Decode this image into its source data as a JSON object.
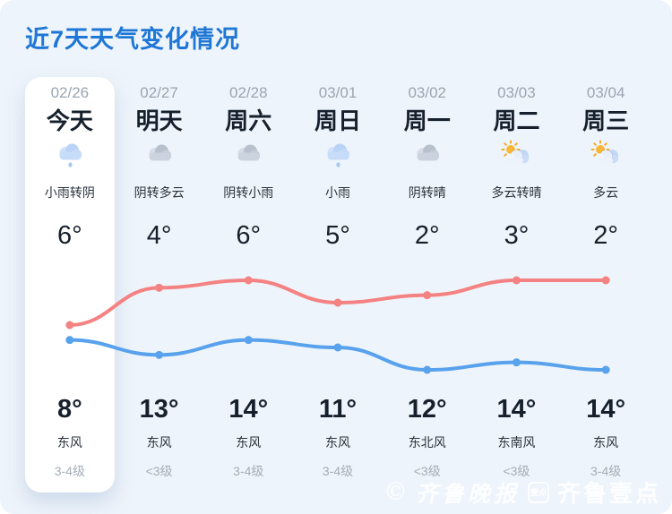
{
  "title": "近7天天气变化情况",
  "colors": {
    "accent_blue": "#1e76d5",
    "background": "#eef4fb",
    "card": "#ffffff",
    "high_line": "#f58282",
    "low_line": "#58a2ed",
    "date_gray": "#9aa5b1",
    "text_dark": "#16202c",
    "level_gray": "#a4adb8"
  },
  "columns": [
    {
      "date": "02/26",
      "day": "今天",
      "icon": "light-rain",
      "desc": "小雨转阴",
      "temp_low": "6°",
      "temp_high": "8°",
      "wind_dir": "东风",
      "wind_level": "3-4级",
      "today": true
    },
    {
      "date": "02/27",
      "day": "明天",
      "icon": "overcast",
      "desc": "阴转多云",
      "temp_low": "4°",
      "temp_high": "13°",
      "wind_dir": "东风",
      "wind_level": "<3级",
      "today": false
    },
    {
      "date": "02/28",
      "day": "周六",
      "icon": "overcast",
      "desc": "阴转小雨",
      "temp_low": "6°",
      "temp_high": "14°",
      "wind_dir": "东风",
      "wind_level": "3-4级",
      "today": false
    },
    {
      "date": "03/01",
      "day": "周日",
      "icon": "light-rain",
      "desc": "小雨",
      "temp_low": "5°",
      "temp_high": "11°",
      "wind_dir": "东风",
      "wind_level": "3-4级",
      "today": false
    },
    {
      "date": "03/02",
      "day": "周一",
      "icon": "overcast",
      "desc": "阴转晴",
      "temp_low": "2°",
      "temp_high": "12°",
      "wind_dir": "东北风",
      "wind_level": "<3级",
      "today": false
    },
    {
      "date": "03/03",
      "day": "周二",
      "icon": "sun-cloud",
      "desc": "多云转晴",
      "temp_low": "3°",
      "temp_high": "14°",
      "wind_dir": "东南风",
      "wind_level": "<3级",
      "today": false
    },
    {
      "date": "03/04",
      "day": "周三",
      "icon": "sun-cloud",
      "desc": "多云",
      "temp_low": "2°",
      "temp_high": "14°",
      "wind_dir": "东风",
      "wind_level": "3-4级",
      "today": false
    }
  ],
  "chart_data": {
    "type": "line",
    "title": "近7天天气变化情况",
    "categories": [
      "02/26",
      "02/27",
      "02/28",
      "03/01",
      "03/02",
      "03/03",
      "03/04"
    ],
    "series": [
      {
        "name": "day-temperature-high",
        "color": "#f58282",
        "values": [
          8,
          13,
          14,
          11,
          12,
          14,
          14
        ]
      },
      {
        "name": "night-temperature-low",
        "color": "#58a2ed",
        "values": [
          6,
          4,
          6,
          5,
          2,
          3,
          2
        ]
      }
    ],
    "ylim": [
      2,
      14
    ],
    "grid": false,
    "legend": "none",
    "point_radius": 4.5,
    "line_width": 4
  },
  "watermark": {
    "copyright": "©",
    "paper": "齐鲁晚报",
    "badge": "壹点",
    "brand": "齐鲁壹点"
  }
}
